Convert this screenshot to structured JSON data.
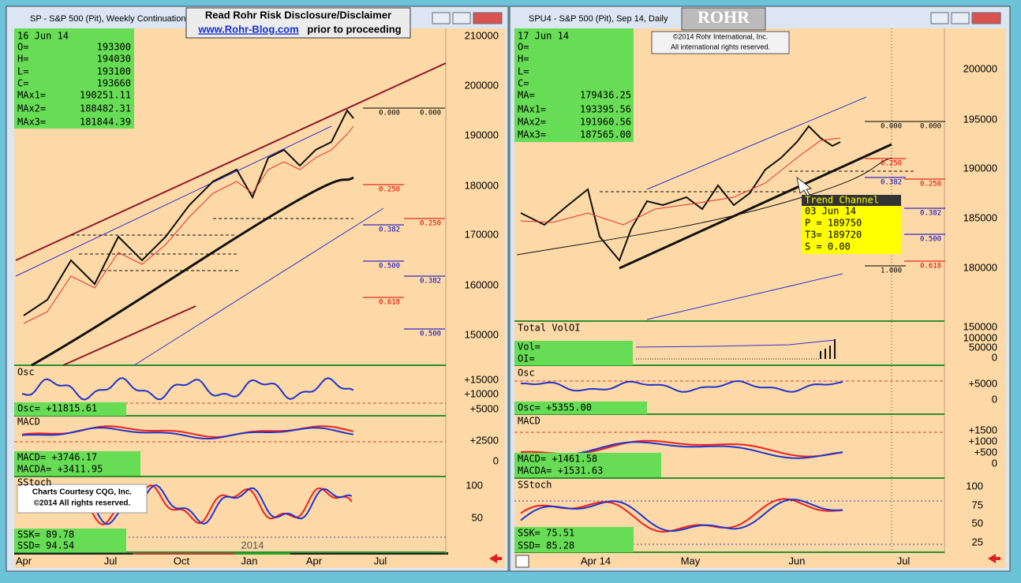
{
  "left_window": {
    "title": "SP - S&P 500 (Pit), Weekly Continuation",
    "disclaimer": {
      "heading": "Read Rohr Risk Disclosure/Disclaimer",
      "link": "www.Rohr-Blog.com",
      "tail": "prior to proceeding"
    },
    "info": {
      "date": "16 Jun 14",
      "rows": [
        {
          "label": "O=",
          "value": "193300"
        },
        {
          "label": "H=",
          "value": "194030"
        },
        {
          "label": "L=",
          "value": "193100"
        },
        {
          "label": "C=",
          "value": "193660"
        },
        {
          "label": "MAx1=",
          "value": "190251.11"
        },
        {
          "label": "MAx2=",
          "value": "188482.31"
        },
        {
          "label": "MAx3=",
          "value": "181844.39"
        }
      ]
    },
    "price_axis": [
      "210000",
      "200000",
      "190000",
      "180000",
      "170000",
      "160000",
      "150000"
    ],
    "fib_labels": [
      "0.000",
      "0.000",
      "0.250",
      "0.250",
      "0.382",
      "0.500",
      "0.382",
      "0.618",
      "0.500"
    ],
    "osc": {
      "label": "Osc",
      "readout": "Osc= +11815.61",
      "axis": [
        "+15000",
        "+10000",
        "+5000"
      ]
    },
    "macd": {
      "label": "MACD",
      "readouts": [
        "MACD=  +3746.17",
        "MACDA= +3411.95"
      ],
      "axis": [
        "+2500",
        "0"
      ]
    },
    "sstoch": {
      "label": "SStoch",
      "readouts": [
        "SSK=     89.78",
        "SSD=     94.54"
      ],
      "axis": [
        "100",
        "50"
      ],
      "year": "2014"
    },
    "credit": [
      "Charts Courtesy CQG, Inc.",
      "©2014 All rights reserved."
    ],
    "x_axis": [
      "Apr",
      "Jul",
      "Oct",
      "Jan",
      "Apr",
      "Jul"
    ]
  },
  "right_window": {
    "title": "SPU4 - S&P 500 (Pit), Sep 14, Daily",
    "logo": "ROHR",
    "copyright": [
      "©2014 Rohr International, Inc.",
      "All international rights reserved."
    ],
    "info": {
      "date": "17 Jun 14",
      "rows": [
        {
          "label": "O="
        },
        {
          "label": "H="
        },
        {
          "label": "L="
        },
        {
          "label": "C="
        },
        {
          "label": "MA=",
          "value": "179436.25"
        },
        {
          "label": "MAx1=",
          "value": "193395.56"
        },
        {
          "label": "MAx2=",
          "value": "191960.56"
        },
        {
          "label": "MAx3=",
          "value": "187565.00"
        }
      ]
    },
    "price_axis": [
      "200000",
      "195000",
      "190000",
      "185000",
      "180000"
    ],
    "fib_labels": [
      "0.000",
      "0.000",
      "0.250",
      "0.382",
      "0.250",
      "0.382",
      "0.500",
      "0.618",
      "1.000"
    ],
    "trend_channel": {
      "heading": "Trend Channel",
      "date": "03 Jun 14",
      "rows": [
        "P =       189750",
        "T3=       189720",
        "S =         0.00"
      ]
    },
    "volume": {
      "label": "Total VolOI",
      "readouts": [
        "Vol=",
        "OI="
      ],
      "axis": [
        "150000",
        "100000",
        "50000",
        "0"
      ]
    },
    "osc": {
      "label": "Osc",
      "readout": "Osc=      +5355.00",
      "axis": [
        "+5000",
        "0"
      ]
    },
    "macd": {
      "label": "MACD",
      "readouts": [
        "MACD=   +1461.58",
        "MACDA=  +1531.63"
      ],
      "axis": [
        "+1500",
        "+1000",
        "+500",
        "0"
      ]
    },
    "sstoch": {
      "label": "SStoch",
      "readouts": [
        "SSK=     75.51",
        "SSD=     85.28"
      ],
      "axis": [
        "100",
        "75",
        "50",
        "25"
      ]
    },
    "x_axis": [
      "Apr 14",
      "May",
      "Jun",
      "Jul"
    ]
  }
}
